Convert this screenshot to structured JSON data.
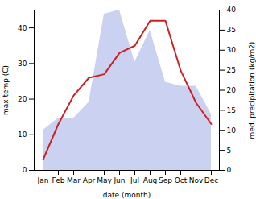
{
  "chart_data": {
    "type": "line",
    "xlabel": "date (month)",
    "ylabel": "max temp (C)",
    "y2label": "med. precipitation (kg/m2)",
    "categories": [
      "Jan",
      "Feb",
      "Mar",
      "Apr",
      "May",
      "Jun",
      "Jul",
      "Aug",
      "Sep",
      "Oct",
      "Nov",
      "Dec"
    ],
    "series": [
      {
        "type": "area",
        "axis": "y2",
        "color": "#c5cdf0",
        "values": [
          10,
          13,
          13,
          17,
          39,
          40,
          27,
          35,
          22,
          21,
          21,
          14
        ]
      },
      {
        "type": "line",
        "color": "#cc2222",
        "values": [
          3,
          13,
          21,
          26,
          27,
          33,
          35,
          42,
          42,
          28,
          19,
          13
        ]
      }
    ],
    "ylim": [
      0,
      45
    ],
    "yticks": [
      0,
      10,
      20,
      30,
      40
    ],
    "y2lim": [
      0,
      40
    ],
    "y2ticks": [
      0,
      5,
      10,
      15,
      20,
      25,
      30,
      35,
      40
    ],
    "grid": false
  }
}
